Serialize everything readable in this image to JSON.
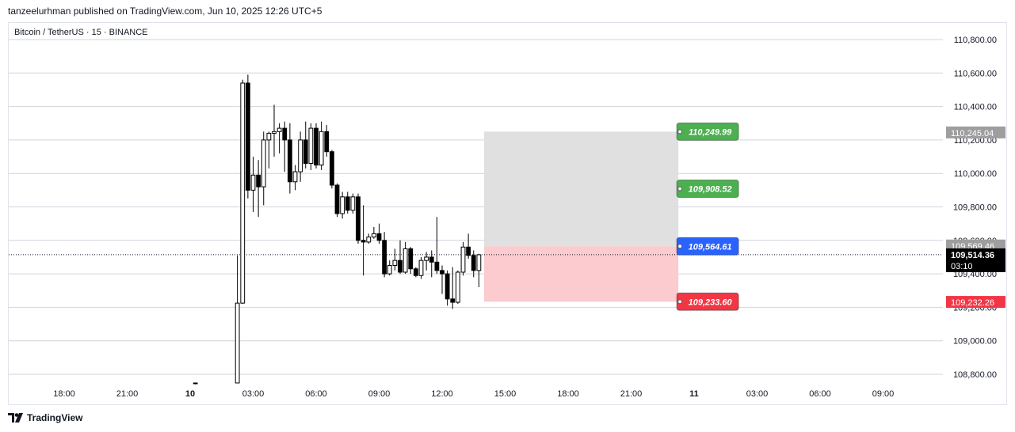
{
  "publisher_line": "tanzeelurhman published on TradingView.com, Jun 10, 2025 12:26 UTC+5",
  "symbol_line": "Bitcoin / TetherUS · 15 · BINANCE",
  "logo_text": "TradingView",
  "logo_icon": "tradingview-logo-icon",
  "colors": {
    "grid": "#d1d4dc",
    "candle_up_fill": "#ffffff",
    "candle_down_fill": "#000000",
    "candle_outline": "#000000",
    "target_zone": "#e0e0e0",
    "stop_zone": "#fbcbcf",
    "tp_label": "#4caf50",
    "entry_label": "#2962ff",
    "sl_label": "#f23645",
    "gray_tag": "#9e9e9e",
    "current_tag": "#000000"
  },
  "chart_data": {
    "type": "candlestick",
    "interval": "15",
    "y_axis": {
      "range": [
        108700,
        110880
      ],
      "tick_values": [
        108800,
        109000,
        109200,
        109400,
        109600,
        109800,
        110000,
        110200,
        110400,
        110600,
        110800
      ],
      "tick_labels": [
        "108,800.00",
        "109,000.00",
        "109,200.00",
        "109,400.00",
        "109,600.00",
        "109,800.00",
        "110,000.00",
        "110,200.00",
        "110,400.00",
        "110,600.00",
        "110,800.00"
      ]
    },
    "x_axis": {
      "tick_labels": [
        "18:00",
        "21:00",
        "10",
        "03:00",
        "06:00",
        "09:00",
        "12:00",
        "15:00",
        "18:00",
        "21:00",
        "11",
        "03:00",
        "06:00",
        "09:00"
      ],
      "tick_hours": [
        18,
        21,
        24,
        27,
        30,
        33,
        36,
        39,
        42,
        45,
        48,
        51,
        54,
        57
      ]
    },
    "candles": [
      {
        "t": 24.25,
        "o": 108711,
        "h": 108740,
        "c": 108730,
        "l": 108705
      },
      {
        "t": 26.25,
        "o": 108600,
        "h": 109510,
        "c": 109225,
        "l": 108600
      },
      {
        "t": 26.5,
        "o": 109225,
        "h": 110560,
        "c": 110540,
        "l": 109220
      },
      {
        "t": 26.75,
        "o": 110540,
        "h": 110590,
        "c": 109900,
        "l": 109850
      },
      {
        "t": 27.0,
        "o": 109900,
        "h": 110100,
        "c": 109990,
        "l": 109770
      },
      {
        "t": 27.25,
        "o": 109990,
        "h": 110080,
        "c": 109920,
        "l": 109740
      },
      {
        "t": 27.5,
        "o": 109920,
        "h": 110250,
        "c": 110200,
        "l": 109810
      },
      {
        "t": 27.75,
        "o": 110200,
        "h": 110250,
        "c": 110240,
        "l": 110030
      },
      {
        "t": 28.0,
        "o": 110240,
        "h": 110410,
        "c": 110250,
        "l": 110100
      },
      {
        "t": 28.25,
        "o": 110250,
        "h": 110300,
        "c": 110270,
        "l": 110120
      },
      {
        "t": 28.5,
        "o": 110270,
        "h": 110310,
        "c": 110200,
        "l": 110010
      },
      {
        "t": 28.75,
        "o": 110200,
        "h": 110300,
        "c": 109950,
        "l": 109880
      },
      {
        "t": 29.0,
        "o": 109950,
        "h": 110050,
        "c": 110010,
        "l": 109900
      },
      {
        "t": 29.25,
        "o": 110010,
        "h": 110250,
        "c": 110200,
        "l": 109950
      },
      {
        "t": 29.5,
        "o": 110200,
        "h": 110310,
        "c": 110060,
        "l": 110030
      },
      {
        "t": 29.75,
        "o": 110060,
        "h": 110300,
        "c": 110270,
        "l": 110020
      },
      {
        "t": 30.0,
        "o": 110270,
        "h": 110300,
        "c": 110050,
        "l": 110030
      },
      {
        "t": 30.25,
        "o": 110050,
        "h": 110310,
        "c": 110250,
        "l": 110020
      },
      {
        "t": 30.5,
        "o": 110250,
        "h": 110290,
        "c": 110130,
        "l": 110100
      },
      {
        "t": 30.75,
        "o": 110130,
        "h": 110140,
        "c": 109930,
        "l": 109910
      },
      {
        "t": 31.0,
        "o": 109930,
        "h": 109940,
        "c": 109760,
        "l": 109740
      },
      {
        "t": 31.25,
        "o": 109760,
        "h": 109890,
        "c": 109860,
        "l": 109730
      },
      {
        "t": 31.5,
        "o": 109860,
        "h": 109890,
        "c": 109780,
        "l": 109760
      },
      {
        "t": 31.75,
        "o": 109780,
        "h": 109880,
        "c": 109860,
        "l": 109760
      },
      {
        "t": 32.0,
        "o": 109860,
        "h": 109880,
        "c": 109600,
        "l": 109580
      },
      {
        "t": 32.25,
        "o": 109600,
        "h": 109810,
        "c": 109590,
        "l": 109390
      },
      {
        "t": 32.5,
        "o": 109590,
        "h": 109640,
        "c": 109620,
        "l": 109580
      },
      {
        "t": 32.75,
        "o": 109620,
        "h": 109680,
        "c": 109640,
        "l": 109610
      },
      {
        "t": 33.0,
        "o": 109640,
        "h": 109700,
        "c": 109600,
        "l": 109580
      },
      {
        "t": 33.25,
        "o": 109600,
        "h": 109650,
        "c": 109400,
        "l": 109380
      },
      {
        "t": 33.5,
        "o": 109400,
        "h": 109480,
        "c": 109450,
        "l": 109390
      },
      {
        "t": 33.75,
        "o": 109450,
        "h": 109550,
        "c": 109480,
        "l": 109420
      },
      {
        "t": 34.0,
        "o": 109480,
        "h": 109600,
        "c": 109410,
        "l": 109400
      },
      {
        "t": 34.25,
        "o": 109410,
        "h": 109590,
        "c": 109550,
        "l": 109400
      },
      {
        "t": 34.5,
        "o": 109550,
        "h": 109560,
        "c": 109430,
        "l": 109400
      },
      {
        "t": 34.75,
        "o": 109430,
        "h": 109440,
        "c": 109390,
        "l": 109380
      },
      {
        "t": 35.0,
        "o": 109390,
        "h": 109500,
        "c": 109480,
        "l": 109370
      },
      {
        "t": 35.25,
        "o": 109480,
        "h": 109530,
        "c": 109500,
        "l": 109420
      },
      {
        "t": 35.5,
        "o": 109500,
        "h": 109540,
        "c": 109470,
        "l": 109380
      },
      {
        "t": 35.75,
        "o": 109470,
        "h": 109740,
        "c": 109420,
        "l": 109400
      },
      {
        "t": 36.0,
        "o": 109420,
        "h": 109450,
        "c": 109400,
        "l": 109280
      },
      {
        "t": 36.25,
        "o": 109400,
        "h": 109420,
        "c": 109250,
        "l": 109210
      },
      {
        "t": 36.5,
        "o": 109250,
        "h": 109440,
        "c": 109230,
        "l": 109190
      },
      {
        "t": 36.75,
        "o": 109230,
        "h": 109420,
        "c": 109410,
        "l": 109220
      },
      {
        "t": 37.0,
        "o": 109410,
        "h": 109590,
        "c": 109560,
        "l": 109390
      },
      {
        "t": 37.25,
        "o": 109560,
        "h": 109640,
        "c": 109510,
        "l": 109490
      },
      {
        "t": 37.5,
        "o": 109510,
        "h": 109540,
        "c": 109420,
        "l": 109380
      },
      {
        "t": 37.75,
        "o": 109420,
        "h": 109520,
        "c": 109514,
        "l": 109320
      }
    ],
    "position": {
      "target_zone": {
        "start": 38.0,
        "end": 47.25,
        "top": 110249.99,
        "bottom": 109564.61
      },
      "stop_zone": {
        "start": 38.0,
        "end": 47.25,
        "top": 109564.61,
        "bottom": 109233.6
      }
    },
    "price_labels": [
      {
        "value": 110249.99,
        "text": "110,249.99",
        "kind": "tp"
      },
      {
        "value": 109908.52,
        "text": "109,908.52",
        "kind": "tp"
      },
      {
        "value": 109564.61,
        "text": "109,564.61",
        "kind": "entry"
      },
      {
        "value": 109233.6,
        "text": "109,233.60",
        "kind": "sl"
      }
    ],
    "axis_tags": [
      {
        "value": 110245.04,
        "text": "110,245.04",
        "kind": "gray"
      },
      {
        "value": 109569.46,
        "text": "109,569.46",
        "kind": "gray"
      },
      {
        "value": 109514.36,
        "text": "109,514.36",
        "sub": "03:10",
        "kind": "current"
      },
      {
        "value": 109232.26,
        "text": "109,232.26",
        "kind": "sl"
      }
    ],
    "current_price": 109514.36,
    "grid": true
  }
}
